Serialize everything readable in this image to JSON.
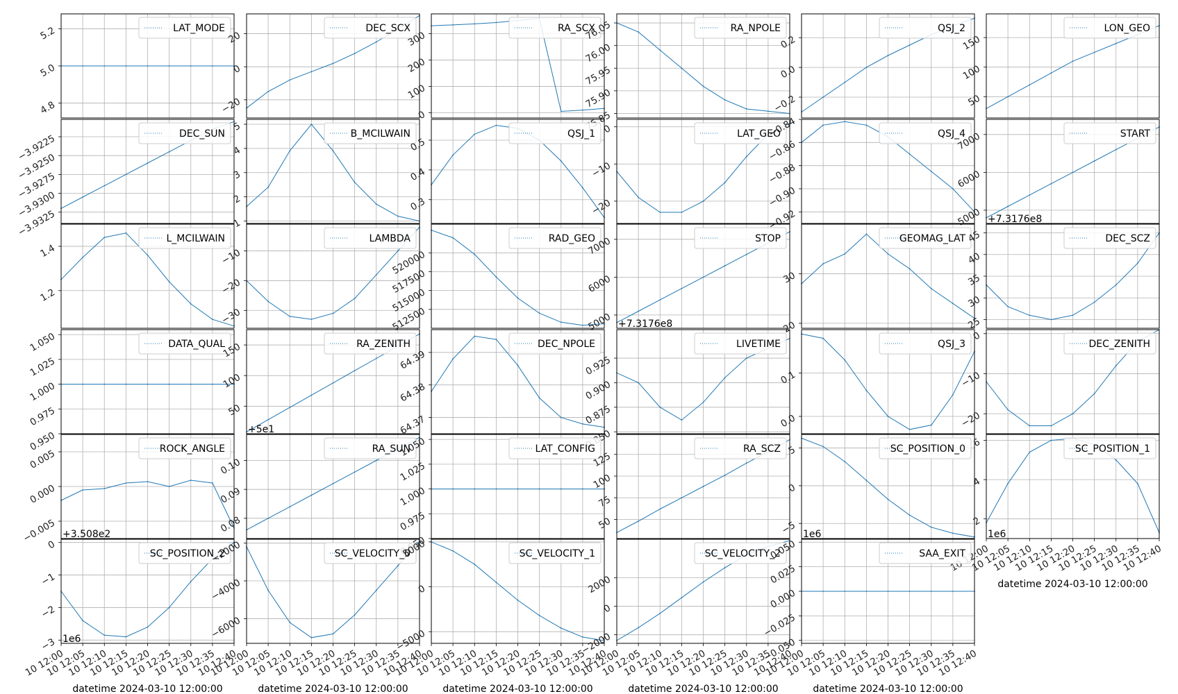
{
  "xlabel": "datetime 2024-03-10 12:00:00",
  "x_tick_labels": [
    "10 12:00",
    "10 12:05",
    "10 12:10",
    "10 12:15",
    "10 12:20",
    "10 12:25",
    "10 12:30",
    "10 12:35",
    "10 12:40"
  ],
  "line_color": "#1f77b4",
  "chart_data": [
    {
      "type": "line",
      "name": "LAT_MODE",
      "ylim": [
        4.72,
        5.28
      ],
      "yticks": [
        "4.8",
        "5.0",
        "5.2"
      ],
      "ytick_values": [
        4.8,
        5.0,
        5.2
      ],
      "y": [
        5,
        5,
        5,
        5,
        5,
        5,
        5,
        5,
        5
      ],
      "offset": ""
    },
    {
      "type": "line",
      "name": "DEC_SCX",
      "ylim": [
        -31,
        32
      ],
      "yticks": [
        "−20",
        "0",
        "20"
      ],
      "ytick_values": [
        -20,
        0,
        20
      ],
      "y": [
        -25,
        -15,
        -8,
        -3,
        2,
        8,
        15,
        23,
        31
      ],
      "offset": ""
    },
    {
      "type": "line",
      "name": "RA_SCX",
      "ylim": [
        -20,
        375
      ],
      "yticks": [
        "0",
        "100",
        "200",
        "300"
      ],
      "ytick_values": [
        0,
        100,
        200,
        300
      ],
      "y": [
        330,
        333,
        337,
        342,
        350,
        358,
        5,
        10,
        16
      ],
      "offset": ""
    },
    {
      "type": "line",
      "name": "RA_NPOLE",
      "ylim": [
        75.84,
        76.07
      ],
      "yticks": [
        "75.85",
        "75.90",
        "75.95",
        "76.00",
        "76.05"
      ],
      "ytick_values": [
        75.85,
        75.9,
        75.95,
        76.0,
        76.05
      ],
      "y": [
        76.05,
        76.03,
        75.99,
        75.95,
        75.91,
        75.88,
        75.86,
        75.855,
        75.85
      ],
      "offset": ""
    },
    {
      "type": "line",
      "name": "QSJ_2",
      "ylim": [
        -0.34,
        0.36
      ],
      "yticks": [
        "−0.2",
        "0.0",
        "0.2"
      ],
      "ytick_values": [
        -0.2,
        0.0,
        0.2
      ],
      "y": [
        -0.3,
        -0.2,
        -0.1,
        0.0,
        0.08,
        0.15,
        0.22,
        0.28,
        0.33
      ],
      "offset": ""
    },
    {
      "type": "line",
      "name": "LON_GEO",
      "ylim": [
        14,
        190
      ],
      "yticks": [
        "50",
        "100",
        "150"
      ],
      "ytick_values": [
        50,
        100,
        150
      ],
      "y": [
        30,
        50,
        70,
        90,
        110,
        125,
        140,
        155,
        170
      ],
      "offset": ""
    },
    {
      "type": "line",
      "name": "DEC_SUN",
      "ylim": [
        -3.934,
        -3.9202
      ],
      "yticks": [
        "−3.9325",
        "−3.9300",
        "−3.9275",
        "−3.9250",
        "−3.9225"
      ],
      "ytick_values": [
        -3.9325,
        -3.93,
        -3.9275,
        -3.925,
        -3.9225
      ],
      "y": [
        -3.932,
        -3.9305,
        -3.929,
        -3.9275,
        -3.926,
        -3.9245,
        -3.923,
        -3.9215,
        -3.9205
      ],
      "offset": ""
    },
    {
      "type": "line",
      "name": "B_MCILWAIN",
      "ylim": [
        0.9,
        5.2
      ],
      "yticks": [
        "1",
        "2",
        "3",
        "4",
        "5"
      ],
      "ytick_values": [
        1,
        2,
        3,
        4,
        5
      ],
      "y": [
        1.6,
        2.4,
        3.9,
        5.0,
        3.9,
        2.6,
        1.7,
        1.2,
        1.0
      ],
      "offset": ""
    },
    {
      "type": "line",
      "name": "QSJ_1",
      "ylim": [
        0.22,
        0.57
      ],
      "yticks": [
        "0.3",
        "0.4",
        "0.5"
      ],
      "ytick_values": [
        0.3,
        0.4,
        0.5
      ],
      "y": [
        0.35,
        0.45,
        0.52,
        0.55,
        0.54,
        0.5,
        0.43,
        0.34,
        0.24
      ],
      "offset": ""
    },
    {
      "type": "line",
      "name": "LAT_GEO",
      "ylim": [
        -26,
        2
      ],
      "yticks": [
        "−20",
        "−10",
        "0"
      ],
      "ytick_values": [
        -20,
        -10,
        0
      ],
      "y": [
        -12,
        -19,
        -23,
        -23,
        -20,
        -15,
        -8,
        -2,
        1
      ],
      "offset": ""
    },
    {
      "type": "line",
      "name": "QSJ_4",
      "ylim": [
        -0.93,
        -0.84
      ],
      "yticks": [
        "−0.92",
        "−0.90",
        "−0.88",
        "−0.86",
        "−0.84"
      ],
      "ytick_values": [
        -0.92,
        -0.9,
        -0.88,
        -0.86,
        -0.84
      ],
      "y": [
        -0.86,
        -0.845,
        -0.842,
        -0.845,
        -0.855,
        -0.87,
        -0.885,
        -0.9,
        -0.92
      ],
      "offset": ""
    },
    {
      "type": "line",
      "name": "START",
      "ylim": [
        4650,
        7400
      ],
      "yticks": [
        "5000",
        "6000",
        "7000"
      ],
      "ytick_values": [
        5000,
        6000,
        7000
      ],
      "y": [
        4800,
        5100,
        5400,
        5700,
        6000,
        6300,
        6600,
        6900,
        7200
      ],
      "offset": "+7.3176e8"
    },
    {
      "type": "line",
      "name": "L_MCILWAIN",
      "ylim": [
        1.03,
        1.5
      ],
      "yticks": [
        "1.2",
        "1.4"
      ],
      "ytick_values": [
        1.2,
        1.4
      ],
      "y": [
        1.25,
        1.35,
        1.44,
        1.46,
        1.36,
        1.24,
        1.14,
        1.07,
        1.04
      ],
      "offset": ""
    },
    {
      "type": "line",
      "name": "LAMBDA",
      "ylim": [
        -36,
        -1
      ],
      "yticks": [
        "−30",
        "−20",
        "−10"
      ],
      "ytick_values": [
        -30,
        -20,
        -10
      ],
      "y": [
        -20,
        -27,
        -32,
        -33,
        -31,
        -26,
        -18,
        -10,
        -2
      ],
      "offset": ""
    },
    {
      "type": "line",
      "name": "RAD_GEO",
      "ylim": [
        510000,
        523800
      ],
      "yticks": [
        "512500",
        "515000",
        "517500",
        "520000"
      ],
      "ytick_values": [
        512500,
        515000,
        517500,
        520000
      ],
      "y": [
        523000,
        522000,
        519800,
        516800,
        514000,
        512000,
        510800,
        510400,
        510600
      ],
      "offset": ""
    },
    {
      "type": "line",
      "name": "STOP",
      "ylim": [
        4650,
        7400
      ],
      "yticks": [
        "5000",
        "6000",
        "7000"
      ],
      "ytick_values": [
        5000,
        6000,
        7000
      ],
      "y": [
        4800,
        5100,
        5400,
        5700,
        6000,
        6300,
        6600,
        6900,
        7200
      ],
      "offset": "+7.3176e8"
    },
    {
      "type": "line",
      "name": "GEOMAG_LAT",
      "ylim": [
        19,
        40
      ],
      "yticks": [
        "20",
        "30"
      ],
      "ytick_values": [
        20,
        30
      ],
      "y": [
        28,
        32,
        34,
        38,
        34,
        31,
        27,
        24,
        21
      ],
      "offset": ""
    },
    {
      "type": "line",
      "name": "DEC_SCZ",
      "ylim": [
        23,
        47
      ],
      "yticks": [
        "25",
        "30",
        "35",
        "40",
        "45"
      ],
      "ytick_values": [
        25,
        30,
        35,
        40,
        45
      ],
      "y": [
        33,
        28,
        26,
        25,
        26,
        29,
        33,
        38,
        45
      ],
      "offset": ""
    },
    {
      "type": "line",
      "name": "DATA_QUAL",
      "ylim": [
        0.95,
        1.055
      ],
      "yticks": [
        "0.950",
        "0.975",
        "1.000",
        "1.025",
        "1.050"
      ],
      "ytick_values": [
        0.95,
        0.975,
        1.0,
        1.025,
        1.05
      ],
      "y": [
        1,
        1,
        1,
        1,
        1,
        1,
        1,
        1,
        1
      ],
      "offset": ""
    },
    {
      "type": "line",
      "name": "RA_ZENITH",
      "ylim": [
        5,
        175
      ],
      "yticks": [
        "50",
        "100",
        "150"
      ],
      "ytick_values": [
        50,
        100,
        150
      ],
      "y": [
        8,
        28,
        48,
        68,
        88,
        108,
        128,
        148,
        168
      ],
      "offset": "+5e1"
    },
    {
      "type": "line",
      "name": "DEC_NPOLE",
      "ylim": [
        64.365,
        64.397
      ],
      "yticks": [
        "64.37",
        "64.38",
        "64.39"
      ],
      "ytick_values": [
        64.37,
        64.38,
        64.39
      ],
      "y": [
        64.378,
        64.388,
        64.395,
        64.394,
        64.386,
        64.376,
        64.37,
        64.368,
        64.367
      ],
      "offset": ""
    },
    {
      "type": "line",
      "name": "LIVETIME",
      "ylim": [
        0.848,
        0.954
      ],
      "yticks": [
        "0.850",
        "0.875",
        "0.900",
        "0.925"
      ],
      "ytick_values": [
        0.85,
        0.875,
        0.9,
        0.925
      ],
      "y": [
        0.91,
        0.9,
        0.875,
        0.862,
        0.88,
        0.905,
        0.925,
        0.935,
        0.945
      ],
      "offset": ""
    },
    {
      "type": "line",
      "name": "QSJ_3",
      "ylim": [
        -0.04,
        0.2
      ],
      "yticks": [
        "0.0",
        "0.1"
      ],
      "ytick_values": [
        0.0,
        0.1
      ],
      "y": [
        0.19,
        0.18,
        0.13,
        0.06,
        0.0,
        -0.03,
        -0.02,
        0.05,
        0.15
      ],
      "offset": ""
    },
    {
      "type": "line",
      "name": "DEC_ZENITH",
      "ylim": [
        -25,
        1
      ],
      "yticks": [
        "−20",
        "−10",
        "0"
      ],
      "ytick_values": [
        -20,
        -10,
        0
      ],
      "y": [
        -12,
        -19,
        -23,
        -23,
        -20,
        -15,
        -8,
        -2,
        1
      ],
      "offset": ""
    },
    {
      "type": "line",
      "name": "ROCK_ANGLE",
      "ylim": [
        -0.0075,
        0.0075
      ],
      "yticks": [
        "−0.005",
        "0.000",
        "0.005"
      ],
      "ytick_values": [
        -0.005,
        0.0,
        0.005
      ],
      "y": [
        -0.002,
        -0.0005,
        -0.0003,
        0.0005,
        0.0007,
        0.0,
        0.0009,
        0.0005,
        -0.006
      ],
      "offset": "+3.508e2"
    },
    {
      "type": "line",
      "name": "RA_SUN",
      "ylim": [
        0.073,
        0.109
      ],
      "yticks": [
        "0.08",
        "0.09",
        "0.10"
      ],
      "ytick_values": [
        0.08,
        0.09,
        0.1
      ],
      "y": [
        0.076,
        0.08,
        0.084,
        0.088,
        0.092,
        0.096,
        0.1,
        0.104,
        0.108
      ],
      "offset": ""
    },
    {
      "type": "line",
      "name": "LAT_CONFIG",
      "ylim": [
        0.95,
        1.055
      ],
      "yticks": [
        "0.950",
        "0.975",
        "1.000",
        "1.025",
        "1.050"
      ],
      "ytick_values": [
        0.95,
        0.975,
        1.0,
        1.025,
        1.05
      ],
      "y": [
        1,
        1,
        1,
        1,
        1,
        1,
        1,
        1,
        1
      ],
      "offset": ""
    },
    {
      "type": "line",
      "name": "RA_SCZ",
      "ylim": [
        28,
        148
      ],
      "yticks": [
        "50",
        "75",
        "100",
        "125"
      ],
      "ytick_values": [
        50,
        75,
        100,
        125
      ],
      "y": [
        35,
        48,
        62,
        75,
        88,
        101,
        115,
        128,
        142
      ],
      "offset": ""
    },
    {
      "type": "line",
      "name": "SC_POSITION_0",
      "ylim": [
        -7,
        6.8
      ],
      "yticks": [
        "−5",
        "0",
        "5"
      ],
      "ytick_values": [
        -5,
        0,
        5
      ],
      "y": [
        6.3,
        5.2,
        3.2,
        0.7,
        -1.8,
        -3.9,
        -5.5,
        -6.3,
        -6.8
      ],
      "offset": "1e6"
    },
    {
      "type": "line",
      "name": "SC_POSITION_1",
      "ylim": [
        1,
        6.3
      ],
      "yticks": [
        "2",
        "4",
        "6"
      ],
      "ytick_values": [
        2,
        4,
        6
      ],
      "y": [
        1.8,
        3.8,
        5.4,
        6.0,
        6.1,
        5.8,
        5.0,
        3.8,
        1.3
      ],
      "offset": "1e6"
    },
    {
      "type": "line",
      "name": "SC_POSITION_2",
      "ylim": [
        -3.1,
        0.1
      ],
      "yticks": [
        "−3",
        "−2",
        "−1",
        "0"
      ],
      "ytick_values": [
        -3,
        -2,
        -1,
        0
      ],
      "y": [
        -1.5,
        -2.4,
        -2.85,
        -2.9,
        -2.6,
        -2.0,
        -1.2,
        -0.5,
        0.0
      ],
      "offset": "1e6"
    },
    {
      "type": "line",
      "name": "SC_VELOCITY_0",
      "ylim": [
        -7300,
        -1800
      ],
      "yticks": [
        "−6000",
        "−4000",
        "−2000"
      ],
      "ytick_values": [
        -6000,
        -4000,
        -2000
      ],
      "y": [
        -2200,
        -4500,
        -6200,
        -7000,
        -6800,
        -5800,
        -4500,
        -3200,
        -1900
      ],
      "offset": ""
    },
    {
      "type": "line",
      "name": "SC_VELOCITY_1",
      "ylim": [
        -6300,
        5300
      ],
      "yticks": [
        "−5000",
        "0",
        "5000"
      ],
      "ytick_values": [
        -5000,
        0,
        5000
      ],
      "y": [
        5000,
        4000,
        2500,
        500,
        -1500,
        -3200,
        -4600,
        -5600,
        -6000
      ],
      "offset": ""
    },
    {
      "type": "line",
      "name": "SC_VELOCITY_2",
      "ylim": [
        -2600,
        4700
      ],
      "yticks": [
        "−2000",
        "0",
        "2000"
      ],
      "ytick_values": [
        -2000,
        0,
        2000
      ],
      "y": [
        -2400,
        -1500,
        -500,
        600,
        1700,
        2700,
        3600,
        4200,
        4600
      ],
      "offset": ""
    },
    {
      "type": "line",
      "name": "SAA_EXIT",
      "ylim": [
        -0.053,
        0.053
      ],
      "yticks": [
        "−0.050",
        "−0.025",
        "0.000",
        "0.025",
        "0.050"
      ],
      "ytick_values": [
        -0.05,
        -0.025,
        0.0,
        0.025,
        0.05
      ],
      "y": [
        0,
        0,
        0,
        0,
        0,
        0,
        0,
        0,
        0
      ],
      "offset": ""
    }
  ]
}
